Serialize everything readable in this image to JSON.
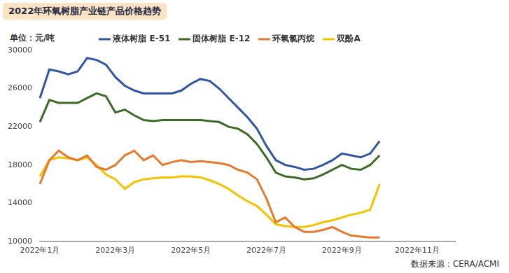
{
  "chart_data": {
    "type": "line",
    "title": "2022年环氧树脂产业链产品价格趋势",
    "ylabel": "单位：元/吨",
    "source": "数据来源：CERA/ACMI",
    "categories": [
      "2022年1月",
      null,
      null,
      null,
      null,
      null,
      null,
      null,
      "2022年3月",
      null,
      null,
      null,
      null,
      null,
      null,
      null,
      "2022年5月",
      null,
      null,
      null,
      null,
      null,
      null,
      null,
      "2022年7月",
      null,
      null,
      null,
      null,
      null,
      null,
      null,
      "2022年9月",
      null,
      null,
      null,
      null,
      null,
      null,
      null,
      "2022年11月",
      null,
      null,
      null,
      null
    ],
    "series": [
      {
        "name": "液体树脂 E-51",
        "color": "#2f55a4",
        "values": [
          25000,
          28000,
          27800,
          27500,
          27800,
          29200,
          29000,
          28500,
          27200,
          26300,
          25800,
          25500,
          25500,
          25500,
          25500,
          25800,
          26500,
          27000,
          26800,
          26000,
          25000,
          24000,
          23000,
          21800,
          20000,
          18500,
          18000,
          17800,
          17500,
          17600,
          18000,
          18500,
          19200,
          19000,
          18800,
          19200,
          20500,
          null,
          null,
          null,
          null,
          null,
          null,
          null,
          null
        ]
      },
      {
        "name": "固体树脂 E-12",
        "color": "#3d6b27",
        "values": [
          22500,
          24800,
          24500,
          24500,
          24500,
          25000,
          25500,
          25200,
          23500,
          23800,
          23200,
          22700,
          22600,
          22700,
          22700,
          22700,
          22700,
          22700,
          22600,
          22500,
          22000,
          21800,
          21200,
          20200,
          18800,
          17200,
          16800,
          16700,
          16500,
          16600,
          17000,
          17500,
          18000,
          17600,
          17500,
          18000,
          19000,
          null,
          null,
          null,
          null,
          null,
          null,
          null,
          null
        ]
      },
      {
        "name": "环氧氯丙烷",
        "color": "#e8792c",
        "values": [
          16000,
          18500,
          19500,
          18800,
          18500,
          19000,
          17800,
          17500,
          18000,
          19000,
          19500,
          18500,
          19000,
          18000,
          18300,
          18500,
          18300,
          18400,
          18300,
          18200,
          18000,
          17500,
          17200,
          16500,
          14500,
          12000,
          12500,
          11500,
          11000,
          11000,
          11200,
          11500,
          11000,
          10600,
          10500,
          10400,
          10400,
          null,
          null,
          null,
          null,
          null,
          null,
          null,
          null
        ]
      },
      {
        "name": "双酚A",
        "color": "#f5c200",
        "values": [
          16800,
          18500,
          18800,
          18700,
          18500,
          18800,
          18000,
          17000,
          16500,
          15500,
          16200,
          16500,
          16600,
          16700,
          16700,
          16800,
          16800,
          16700,
          16400,
          16000,
          15500,
          14800,
          14200,
          13700,
          12800,
          11800,
          11600,
          11500,
          11500,
          11700,
          12000,
          12200,
          12500,
          12800,
          13000,
          13300,
          16000,
          null,
          null,
          null,
          null,
          null,
          null,
          null,
          null
        ]
      }
    ],
    "ylim": [
      10000,
      30000
    ],
    "yticks": [
      10000,
      14000,
      18000,
      22000,
      26000,
      30000
    ],
    "grid": false,
    "legend": "top"
  }
}
